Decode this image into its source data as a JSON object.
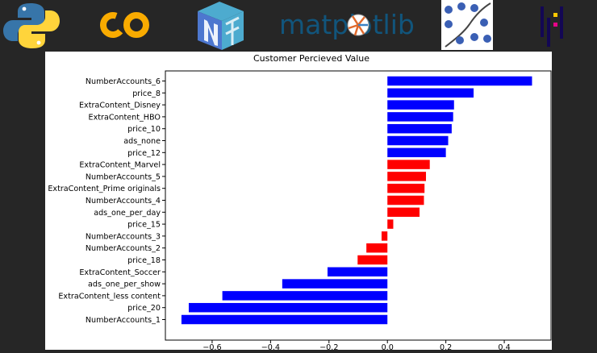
{
  "logos": {
    "python": "python-logo",
    "colab": "colab-logo",
    "numpy": "numpy-logo",
    "matplotlib_text": "matplotlib",
    "seaborn": "seaborn-logo",
    "pandas": "pandas-logo"
  },
  "chart_data": {
    "type": "bar",
    "orientation": "horizontal",
    "title": "Customer Percieved Value",
    "xlabel": "",
    "ylabel": "",
    "xlim": [
      -0.76,
      0.56
    ],
    "xticks": [
      -0.6,
      -0.4,
      -0.2,
      0.0,
      0.2,
      0.4
    ],
    "xtick_labels": [
      "−0.6",
      "−0.4",
      "−0.2",
      "0.0",
      "0.2",
      "0.4"
    ],
    "grid": false,
    "categories": [
      "NumberAccounts_6",
      "price_8",
      "ExtraContent_Disney",
      "ExtraContent_HBO",
      "price_10",
      "ads_none",
      "price_12",
      "ExtraContent_Marvel",
      "NumberAccounts_5",
      "ExtraContent_Prime originals",
      "NumberAccounts_4",
      "ads_one_per_day",
      "price_15",
      "NumberAccounts_3",
      "NumberAccounts_2",
      "price_18",
      "ExtraContent_Soccer",
      "ads_one_per_show",
      "ExtraContent_less content",
      "price_20",
      "NumberAccounts_1"
    ],
    "values": [
      0.495,
      0.295,
      0.228,
      0.225,
      0.22,
      0.208,
      0.2,
      0.145,
      0.132,
      0.127,
      0.125,
      0.11,
      0.02,
      -0.02,
      -0.072,
      -0.102,
      -0.205,
      -0.36,
      -0.565,
      -0.68,
      -0.705
    ],
    "colors": [
      "#0000ff",
      "#0000ff",
      "#0000ff",
      "#0000ff",
      "#0000ff",
      "#0000ff",
      "#0000ff",
      "#ff0000",
      "#ff0000",
      "#ff0000",
      "#ff0000",
      "#ff0000",
      "#ff0000",
      "#ff0000",
      "#ff0000",
      "#ff0000",
      "#0000ff",
      "#0000ff",
      "#0000ff",
      "#0000ff",
      "#0000ff"
    ]
  }
}
